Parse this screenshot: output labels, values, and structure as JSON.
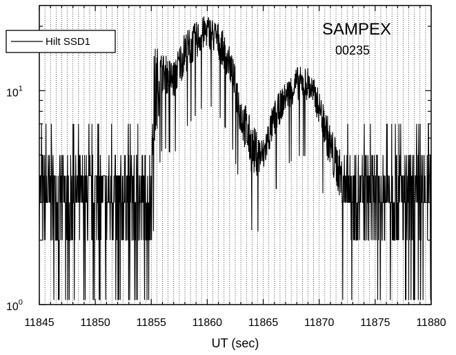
{
  "chart_data": {
    "type": "line",
    "xlabel": "UT  (sec)",
    "ylabel": "",
    "xlim": [
      11845,
      11880
    ],
    "ylim": [
      1,
      25
    ],
    "yscale": "log",
    "x_ticks": [
      11845,
      11850,
      11855,
      11860,
      11865,
      11870,
      11875,
      11880
    ],
    "x_tick_labels": [
      "11845",
      "11850",
      "11855",
      "11860",
      "11865",
      "11870",
      "11875",
      "11880"
    ],
    "y_ticks": [
      {
        "value": 1,
        "base": "10",
        "exp": "0"
      },
      {
        "value": 10,
        "base": "10",
        "exp": "1"
      }
    ],
    "grid": "vertical dotted lines every 0.5 s",
    "annotations": [
      "SAMPEX",
      "00235"
    ],
    "legend": {
      "placement": "top-left",
      "entries": [
        "Hilt  SSD1"
      ]
    },
    "series": [
      {
        "name": "Hilt  SSD1",
        "color": "#000000",
        "envelope": [
          {
            "x": 11845.0,
            "lo": 2,
            "hi": 5
          },
          {
            "x": 11846.0,
            "lo": 2,
            "hi": 5
          },
          {
            "x": 11847.0,
            "lo": 2,
            "hi": 5
          },
          {
            "x": 11848.0,
            "lo": 2,
            "hi": 5
          },
          {
            "x": 11849.0,
            "lo": 2,
            "hi": 5
          },
          {
            "x": 11850.0,
            "lo": 2,
            "hi": 5
          },
          {
            "x": 11851.0,
            "lo": 2,
            "hi": 5
          },
          {
            "x": 11852.0,
            "lo": 2,
            "hi": 5
          },
          {
            "x": 11853.0,
            "lo": 2,
            "hi": 5
          },
          {
            "x": 11854.0,
            "lo": 2,
            "hi": 5
          },
          {
            "x": 11855.0,
            "lo": 2,
            "hi": 5
          },
          {
            "x": 11855.3,
            "lo": 5,
            "hi": 17
          },
          {
            "x": 11856.0,
            "lo": 10,
            "hi": 15
          },
          {
            "x": 11857.0,
            "lo": 9,
            "hi": 14
          },
          {
            "x": 11858.0,
            "lo": 12,
            "hi": 19
          },
          {
            "x": 11859.0,
            "lo": 14,
            "hi": 21
          },
          {
            "x": 11860.0,
            "lo": 16,
            "hi": 23
          },
          {
            "x": 11861.0,
            "lo": 14,
            "hi": 21
          },
          {
            "x": 11862.0,
            "lo": 11,
            "hi": 16
          },
          {
            "x": 11863.0,
            "lo": 6,
            "hi": 10
          },
          {
            "x": 11864.0,
            "lo": 4,
            "hi": 7
          },
          {
            "x": 11865.0,
            "lo": 4,
            "hi": 6
          },
          {
            "x": 11866.0,
            "lo": 6,
            "hi": 9
          },
          {
            "x": 11867.0,
            "lo": 8,
            "hi": 11
          },
          {
            "x": 11868.0,
            "lo": 9,
            "hi": 13
          },
          {
            "x": 11869.0,
            "lo": 9,
            "hi": 13
          },
          {
            "x": 11870.0,
            "lo": 7,
            "hi": 10
          },
          {
            "x": 11871.0,
            "lo": 4,
            "hi": 7
          },
          {
            "x": 11872.0,
            "lo": 3,
            "hi": 5
          },
          {
            "x": 11873.0,
            "lo": 2,
            "hi": 5
          },
          {
            "x": 11874.0,
            "lo": 2,
            "hi": 5
          },
          {
            "x": 11875.0,
            "lo": 2,
            "hi": 5
          },
          {
            "x": 11876.0,
            "lo": 2,
            "hi": 5
          },
          {
            "x": 11877.0,
            "lo": 2,
            "hi": 5
          },
          {
            "x": 11878.0,
            "lo": 2,
            "hi": 5
          },
          {
            "x": 11879.0,
            "lo": 2,
            "hi": 5
          },
          {
            "x": 11880.0,
            "lo": 2,
            "hi": 5
          }
        ]
      }
    ]
  }
}
